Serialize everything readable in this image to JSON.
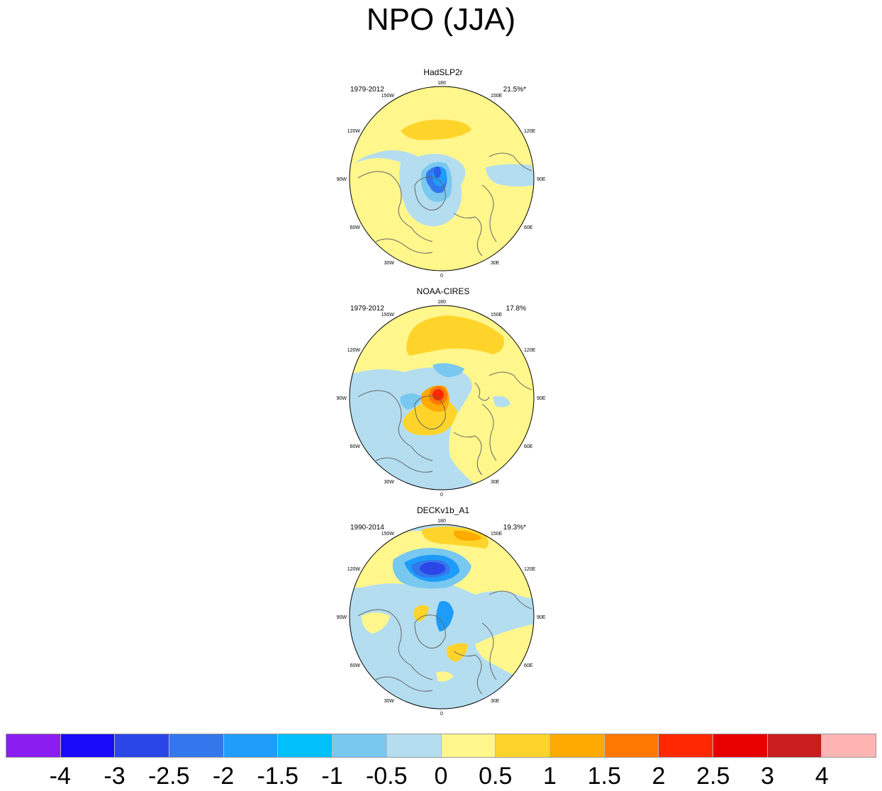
{
  "title": "NPO (JJA)",
  "panels": [
    {
      "title": "HadSLP2r",
      "period": "1979-2012",
      "variance": "21.5%*"
    },
    {
      "title": "NOAA-CIRES",
      "period": "1979-2012",
      "variance": "17.8%"
    },
    {
      "title": "DECKv1b_A1",
      "period": "1990-2014",
      "variance": "19.3%*"
    }
  ],
  "longitude_labels": [
    "180",
    "150E",
    "120E",
    "90E",
    "60E",
    "30E",
    "0",
    "30W",
    "60W",
    "90W",
    "120W",
    "150W"
  ],
  "colorbar": {
    "colors": [
      "#8a1ef0",
      "#1a0afa",
      "#2b46e6",
      "#3278ec",
      "#1e9cfa",
      "#00c0fa",
      "#78c8f0",
      "#b4def0",
      "#fff68c",
      "#ffd42a",
      "#ffaa00",
      "#ff7800",
      "#ff2800",
      "#e60000",
      "#c81e1e",
      "#ffb4b4"
    ],
    "labels": [
      "-4",
      "-3",
      "-2.5",
      "-2",
      "-1.5",
      "-1",
      "-0.5",
      "0",
      "0.5",
      "1",
      "1.5",
      "2",
      "2.5",
      "3",
      "4"
    ]
  }
}
